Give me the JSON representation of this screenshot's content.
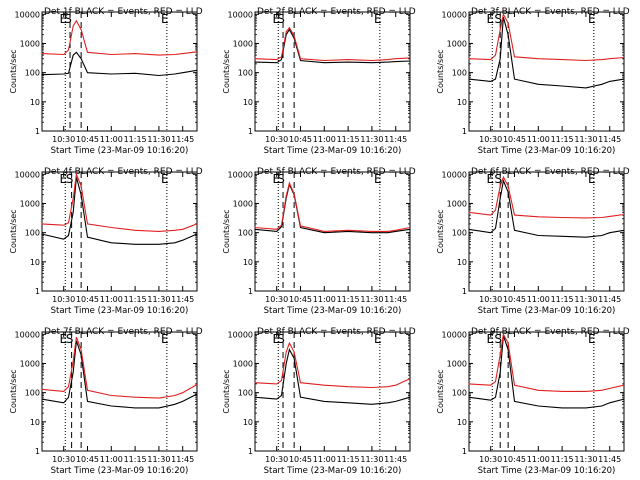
{
  "figure": {
    "xlabel": "Start Time (23-Mar-09 10:16:20)",
    "ylabel": "Counts/sec",
    "x_ticks": [
      "10:30",
      "10:45",
      "11:00",
      "11:15",
      "11:30",
      "11:45"
    ],
    "y_ticks": [
      "1",
      "10",
      "100",
      "1000",
      "10000"
    ]
  },
  "chart_data": [
    {
      "type": "line",
      "title": "Det 1f BLACK = Events, RED = LLD",
      "yscale": "log",
      "ylim": [
        1,
        12000
      ],
      "xlim": [
        "10:16:20",
        "11:54:00"
      ],
      "x_ticks": [
        "10:30",
        "10:45",
        "11:00",
        "11:15",
        "11:30",
        "11:45"
      ],
      "markers": [
        {
          "label": "E",
          "time": "10:31",
          "style": "dotted"
        },
        {
          "label": "S",
          "time": "10:34",
          "style": "dashed"
        },
        {
          "label": "",
          "time": "10:41",
          "style": "dashed"
        },
        {
          "label": "E",
          "time": "11:35",
          "style": "dotted"
        }
      ],
      "series": [
        {
          "name": "Events",
          "color": "#000000",
          "x": [
            "10:16",
            "10:30",
            "10:33",
            "10:36",
            "10:38",
            "10:41",
            "10:45",
            "11:00",
            "11:15",
            "11:30",
            "11:40",
            "11:45",
            "11:54"
          ],
          "y": [
            85,
            90,
            95,
            400,
            500,
            300,
            100,
            90,
            95,
            80,
            90,
            100,
            120
          ]
        },
        {
          "name": "LLD",
          "color": "#e02020",
          "x": [
            "10:16",
            "10:30",
            "10:33",
            "10:36",
            "10:38",
            "10:41",
            "10:45",
            "11:00",
            "11:15",
            "11:30",
            "11:40",
            "11:45",
            "11:54"
          ],
          "y": [
            450,
            420,
            600,
            4000,
            6000,
            3000,
            500,
            420,
            450,
            400,
            420,
            450,
            520
          ]
        }
      ]
    },
    {
      "type": "line",
      "title": "Det 2f BLACK = Events, RED = LLD",
      "yscale": "log",
      "ylim": [
        1,
        12000
      ],
      "xlim": [
        "10:16:20",
        "11:54:00"
      ],
      "x_ticks": [
        "10:30",
        "10:45",
        "11:00",
        "11:15",
        "11:30",
        "11:45"
      ],
      "markers": [
        {
          "label": "E",
          "time": "10:31",
          "style": "dotted"
        },
        {
          "label": "S",
          "time": "10:34",
          "style": "dashed"
        },
        {
          "label": "",
          "time": "10:41",
          "style": "dashed"
        },
        {
          "label": "E",
          "time": "11:35",
          "style": "dotted"
        }
      ],
      "series": [
        {
          "name": "Events",
          "color": "#000000",
          "x": [
            "10:16",
            "10:30",
            "10:33",
            "10:36",
            "10:38",
            "10:41",
            "10:45",
            "11:00",
            "11:15",
            "11:30",
            "11:40",
            "11:45",
            "11:54"
          ],
          "y": [
            230,
            220,
            280,
            2000,
            3000,
            1500,
            260,
            220,
            230,
            220,
            230,
            240,
            250
          ]
        },
        {
          "name": "LLD",
          "color": "#e02020",
          "x": [
            "10:16",
            "10:30",
            "10:33",
            "10:36",
            "10:38",
            "10:41",
            "10:45",
            "11:00",
            "11:15",
            "11:30",
            "11:40",
            "11:45",
            "11:54"
          ],
          "y": [
            300,
            280,
            350,
            2500,
            3500,
            1800,
            300,
            260,
            280,
            260,
            280,
            300,
            320
          ]
        }
      ]
    },
    {
      "type": "line",
      "title": "Det 3f BLACK = Events, RED = LLD",
      "yscale": "log",
      "ylim": [
        1,
        12000
      ],
      "xlim": [
        "10:16:20",
        "11:54:00"
      ],
      "x_ticks": [
        "10:30",
        "10:45",
        "11:00",
        "11:15",
        "11:30",
        "11:45"
      ],
      "markers": [
        {
          "label": "E",
          "time": "10:31",
          "style": "dotted"
        },
        {
          "label": "S",
          "time": "10:36",
          "style": "dashed"
        },
        {
          "label": "",
          "time": "10:41",
          "style": "dashed"
        },
        {
          "label": "E",
          "time": "11:35",
          "style": "dotted"
        }
      ],
      "series": [
        {
          "name": "Events",
          "color": "#000000",
          "x": [
            "10:16",
            "10:30",
            "10:33",
            "10:36",
            "10:38",
            "10:41",
            "10:45",
            "11:00",
            "11:15",
            "11:30",
            "11:40",
            "11:45",
            "11:54"
          ],
          "y": [
            60,
            50,
            60,
            300,
            8000,
            2000,
            60,
            40,
            35,
            30,
            40,
            50,
            60
          ]
        },
        {
          "name": "LLD",
          "color": "#e02020",
          "x": [
            "10:16",
            "10:30",
            "10:33",
            "10:36",
            "10:38",
            "10:41",
            "10:45",
            "11:00",
            "11:15",
            "11:30",
            "11:40",
            "11:45",
            "11:54"
          ],
          "y": [
            300,
            280,
            400,
            3000,
            10000,
            5000,
            350,
            300,
            280,
            260,
            280,
            300,
            330
          ]
        }
      ]
    },
    {
      "type": "line",
      "title": "Det 4f BLACK = Events, RED = LLD",
      "yscale": "log",
      "ylim": [
        1,
        12000
      ],
      "xlim": [
        "10:16:20",
        "11:54:00"
      ],
      "x_ticks": [
        "10:30",
        "10:45",
        "11:00",
        "11:15",
        "11:30",
        "11:45"
      ],
      "markers": [
        {
          "label": "E",
          "time": "10:31",
          "style": "dotted"
        },
        {
          "label": "S",
          "time": "10:35",
          "style": "dashed"
        },
        {
          "label": "",
          "time": "10:41",
          "style": "dashed"
        },
        {
          "label": "E",
          "time": "11:35",
          "style": "dotted"
        }
      ],
      "series": [
        {
          "name": "Events",
          "color": "#000000",
          "x": [
            "10:16",
            "10:30",
            "10:33",
            "10:36",
            "10:38",
            "10:41",
            "10:45",
            "11:00",
            "11:15",
            "11:30",
            "11:40",
            "11:45",
            "11:54"
          ],
          "y": [
            90,
            60,
            80,
            500,
            8000,
            2000,
            70,
            45,
            40,
            40,
            45,
            55,
            90
          ]
        },
        {
          "name": "LLD",
          "color": "#e02020",
          "x": [
            "10:16",
            "10:30",
            "10:33",
            "10:36",
            "10:38",
            "10:41",
            "10:45",
            "11:00",
            "11:15",
            "11:30",
            "11:40",
            "11:45",
            "11:54"
          ],
          "y": [
            200,
            180,
            220,
            1500,
            10000,
            4000,
            200,
            150,
            120,
            110,
            120,
            130,
            200
          ]
        }
      ]
    },
    {
      "type": "line",
      "title": "Det 5f BLACK = Events, RED = LLD",
      "yscale": "log",
      "ylim": [
        1,
        12000
      ],
      "xlim": [
        "10:16:20",
        "11:54:00"
      ],
      "x_ticks": [
        "10:30",
        "10:45",
        "11:00",
        "11:15",
        "11:30",
        "11:45"
      ],
      "markers": [
        {
          "label": "E",
          "time": "10:31",
          "style": "dotted"
        },
        {
          "label": "S",
          "time": "10:34",
          "style": "dashed"
        },
        {
          "label": "",
          "time": "10:41",
          "style": "dashed"
        },
        {
          "label": "E",
          "time": "11:35",
          "style": "dotted"
        }
      ],
      "series": [
        {
          "name": "Events",
          "color": "#000000",
          "x": [
            "10:16",
            "10:30",
            "10:33",
            "10:36",
            "10:38",
            "10:41",
            "10:45",
            "11:00",
            "11:15",
            "11:30",
            "11:40",
            "11:45",
            "11:54"
          ],
          "y": [
            130,
            110,
            160,
            1500,
            4500,
            2000,
            150,
            100,
            110,
            100,
            100,
            110,
            130
          ]
        },
        {
          "name": "LLD",
          "color": "#e02020",
          "x": [
            "10:16",
            "10:30",
            "10:33",
            "10:36",
            "10:38",
            "10:41",
            "10:45",
            "11:00",
            "11:15",
            "11:30",
            "11:40",
            "11:45",
            "11:54"
          ],
          "y": [
            150,
            130,
            180,
            1800,
            5000,
            2200,
            170,
            110,
            120,
            110,
            110,
            120,
            150
          ]
        }
      ]
    },
    {
      "type": "line",
      "title": "Det 6f BLACK = Events, RED = LLD",
      "yscale": "log",
      "ylim": [
        1,
        12000
      ],
      "xlim": [
        "10:16:20",
        "11:54:00"
      ],
      "x_ticks": [
        "10:30",
        "10:45",
        "11:00",
        "11:15",
        "11:30",
        "11:45"
      ],
      "markers": [
        {
          "label": "E",
          "time": "10:31",
          "style": "dotted"
        },
        {
          "label": "S",
          "time": "10:36",
          "style": "dashed"
        },
        {
          "label": "",
          "time": "10:41",
          "style": "dashed"
        },
        {
          "label": "E",
          "time": "11:35",
          "style": "dotted"
        }
      ],
      "series": [
        {
          "name": "Events",
          "color": "#000000",
          "x": [
            "10:16",
            "10:30",
            "10:33",
            "10:36",
            "10:38",
            "10:41",
            "10:45",
            "11:00",
            "11:15",
            "11:30",
            "11:40",
            "11:45",
            "11:54"
          ],
          "y": [
            130,
            100,
            140,
            1500,
            6000,
            2500,
            120,
            80,
            75,
            70,
            80,
            100,
            120
          ]
        },
        {
          "name": "LLD",
          "color": "#e02020",
          "x": [
            "10:16",
            "10:30",
            "10:33",
            "10:36",
            "10:38",
            "10:41",
            "10:45",
            "11:00",
            "11:15",
            "11:30",
            "11:40",
            "11:45",
            "11:54"
          ],
          "y": [
            500,
            400,
            600,
            4000,
            8000,
            4000,
            400,
            350,
            330,
            320,
            330,
            360,
            420
          ]
        }
      ]
    },
    {
      "type": "line",
      "title": "Det 7f BLACK = Events, RED = LLD",
      "yscale": "log",
      "ylim": [
        1,
        12000
      ],
      "xlim": [
        "10:16:20",
        "11:54:00"
      ],
      "x_ticks": [
        "10:30",
        "10:45",
        "11:00",
        "11:15",
        "11:30",
        "11:45"
      ],
      "markers": [
        {
          "label": "E",
          "time": "10:31",
          "style": "dotted"
        },
        {
          "label": "S",
          "time": "10:35",
          "style": "dashed"
        },
        {
          "label": "",
          "time": "10:41",
          "style": "dashed"
        },
        {
          "label": "E",
          "time": "11:35",
          "style": "dotted"
        }
      ],
      "series": [
        {
          "name": "Events",
          "color": "#000000",
          "x": [
            "10:16",
            "10:30",
            "10:33",
            "10:36",
            "10:38",
            "10:41",
            "10:45",
            "11:00",
            "11:15",
            "11:30",
            "11:40",
            "11:45",
            "11:54"
          ],
          "y": [
            60,
            45,
            70,
            500,
            6000,
            2000,
            50,
            35,
            30,
            30,
            40,
            50,
            90
          ]
        },
        {
          "name": "LLD",
          "color": "#e02020",
          "x": [
            "10:16",
            "10:30",
            "10:33",
            "10:36",
            "10:38",
            "10:41",
            "10:45",
            "11:00",
            "11:15",
            "11:30",
            "11:40",
            "11:45",
            "11:54"
          ],
          "y": [
            130,
            110,
            160,
            1200,
            8000,
            3000,
            120,
            80,
            70,
            65,
            80,
            100,
            190
          ]
        }
      ]
    },
    {
      "type": "line",
      "title": "Det 8f BLACK = Events, RED = LLD",
      "yscale": "log",
      "ylim": [
        1,
        12000
      ],
      "xlim": [
        "10:16:20",
        "11:54:00"
      ],
      "x_ticks": [
        "10:30",
        "10:45",
        "11:00",
        "11:15",
        "11:30",
        "11:45"
      ],
      "markers": [
        {
          "label": "E",
          "time": "10:31",
          "style": "dotted"
        },
        {
          "label": "S",
          "time": "10:34",
          "style": "dashed"
        },
        {
          "label": "",
          "time": "10:41",
          "style": "dashed"
        },
        {
          "label": "E",
          "time": "11:35",
          "style": "dotted"
        }
      ],
      "series": [
        {
          "name": "Events",
          "color": "#000000",
          "x": [
            "10:16",
            "10:30",
            "10:33",
            "10:36",
            "10:38",
            "10:41",
            "10:45",
            "11:00",
            "11:15",
            "11:30",
            "11:40",
            "11:45",
            "11:54"
          ],
          "y": [
            70,
            60,
            80,
            1000,
            3000,
            1500,
            70,
            50,
            45,
            40,
            45,
            50,
            70
          ]
        },
        {
          "name": "LLD",
          "color": "#e02020",
          "x": [
            "10:16",
            "10:30",
            "10:33",
            "10:36",
            "10:38",
            "10:41",
            "10:45",
            "11:00",
            "11:15",
            "11:30",
            "11:40",
            "11:45",
            "11:54"
          ],
          "y": [
            220,
            200,
            260,
            2500,
            5000,
            2500,
            220,
            180,
            160,
            150,
            160,
            180,
            300
          ]
        }
      ]
    },
    {
      "type": "line",
      "title": "Det 9f BLACK = Events, RED = LLD",
      "yscale": "log",
      "ylim": [
        1,
        12000
      ],
      "xlim": [
        "10:16:20",
        "11:54:00"
      ],
      "x_ticks": [
        "10:30",
        "10:45",
        "11:00",
        "11:15",
        "11:30",
        "11:45"
      ],
      "markers": [
        {
          "label": "E",
          "time": "10:31",
          "style": "dotted"
        },
        {
          "label": "S",
          "time": "10:36",
          "style": "dashed"
        },
        {
          "label": "",
          "time": "10:41",
          "style": "dashed"
        },
        {
          "label": "E",
          "time": "11:35",
          "style": "dotted"
        }
      ],
      "series": [
        {
          "name": "Events",
          "color": "#000000",
          "x": [
            "10:16",
            "10:30",
            "10:33",
            "10:36",
            "10:38",
            "10:41",
            "10:45",
            "11:00",
            "11:15",
            "11:30",
            "11:40",
            "11:45",
            "11:54"
          ],
          "y": [
            70,
            55,
            70,
            500,
            9000,
            3000,
            50,
            35,
            30,
            30,
            35,
            45,
            60
          ]
        },
        {
          "name": "LLD",
          "color": "#e02020",
          "x": [
            "10:16",
            "10:30",
            "10:33",
            "10:36",
            "10:38",
            "10:41",
            "10:45",
            "11:00",
            "11:15",
            "11:30",
            "11:40",
            "11:45",
            "11:54"
          ],
          "y": [
            200,
            180,
            240,
            2000,
            10000,
            5000,
            180,
            120,
            110,
            110,
            120,
            140,
            180
          ]
        }
      ]
    }
  ]
}
